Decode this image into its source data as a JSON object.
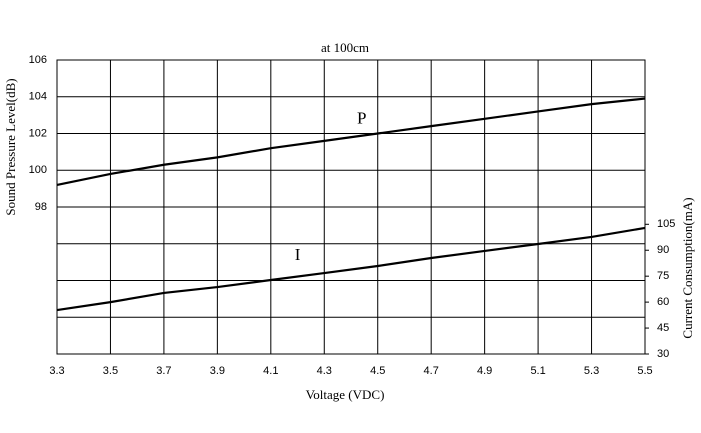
{
  "chart_data": {
    "type": "line",
    "title": "at 100cm",
    "xlabel": "Voltage (VDC)",
    "ylabel": "Sound Pressure Level(dB)",
    "y2label": "Current Consumption(mA)",
    "x": [
      3.3,
      3.5,
      3.7,
      3.9,
      4.1,
      4.3,
      4.5,
      4.7,
      4.9,
      5.1,
      5.3,
      5.5
    ],
    "xlim": [
      3.3,
      5.5
    ],
    "xticks": [
      3.3,
      3.5,
      3.7,
      3.9,
      4.1,
      4.3,
      4.5,
      4.7,
      4.9,
      5.1,
      5.3,
      5.5
    ],
    "ylim": [
      90,
      106
    ],
    "yticks": [
      98,
      100,
      102,
      104,
      106
    ],
    "yminor_grid": [
      92,
      94,
      96
    ],
    "y2lim": [
      30,
      200
    ],
    "y2ticks": [
      30,
      45,
      60,
      75,
      90,
      105
    ],
    "grid": true,
    "series": [
      {
        "name": "P",
        "color": "#000000",
        "values": [
          99.2,
          99.8,
          100.3,
          100.7,
          101.2,
          101.6,
          102.0,
          102.4,
          102.8,
          103.2,
          103.6,
          103.9
        ]
      },
      {
        "name": "I",
        "color": "#000000",
        "axis": "y2",
        "values": [
          55.4,
          60.0,
          65.3,
          68.7,
          72.8,
          76.8,
          80.9,
          85.5,
          89.6,
          93.6,
          97.7,
          102.9
        ]
      }
    ]
  }
}
